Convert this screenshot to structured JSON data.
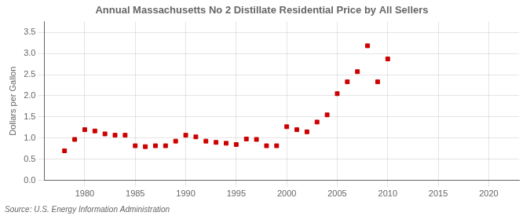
{
  "chart_data": {
    "type": "scatter",
    "title": "Annual Massachusetts No 2 Distillate Residential Price by All Sellers",
    "ylabel": "Dollars per Gallon",
    "annotations": [
      "Source: U.S. Energy Information Administration"
    ],
    "x": [
      1978,
      1979,
      1980,
      1981,
      1982,
      1983,
      1984,
      1985,
      1986,
      1987,
      1988,
      1989,
      1990,
      1991,
      1992,
      1993,
      1994,
      1995,
      1996,
      1997,
      1998,
      1999,
      2000,
      2001,
      2002,
      2003,
      2004,
      2005,
      2006,
      2007,
      2008,
      2009,
      2010
    ],
    "values": [
      0.7,
      0.97,
      1.2,
      1.17,
      1.1,
      1.07,
      1.07,
      0.82,
      0.8,
      0.82,
      0.82,
      0.93,
      1.07,
      1.03,
      0.93,
      0.9,
      0.88,
      0.85,
      0.98,
      0.97,
      0.82,
      0.82,
      1.27,
      1.2,
      1.15,
      1.38,
      1.55,
      2.05,
      2.33,
      2.57,
      3.18,
      2.33,
      2.87
    ],
    "color": "#cc0000",
    "marker": "square",
    "xlim": [
      1976,
      2023
    ],
    "xticks": [
      1980,
      1985,
      1990,
      1995,
      2000,
      2005,
      2010,
      2015,
      2020
    ],
    "ylim": [
      0.0,
      3.75
    ],
    "yticks": [
      {
        "value": 0.0,
        "label": "0.0"
      },
      0.5,
      {
        "value": 1.0,
        "label": "1.0"
      },
      1.5,
      {
        "value": 2.0,
        "label": "2.0"
      },
      2.5,
      {
        "value": 3.0,
        "label": "3.0"
      },
      3.5
    ],
    "grid": true
  }
}
